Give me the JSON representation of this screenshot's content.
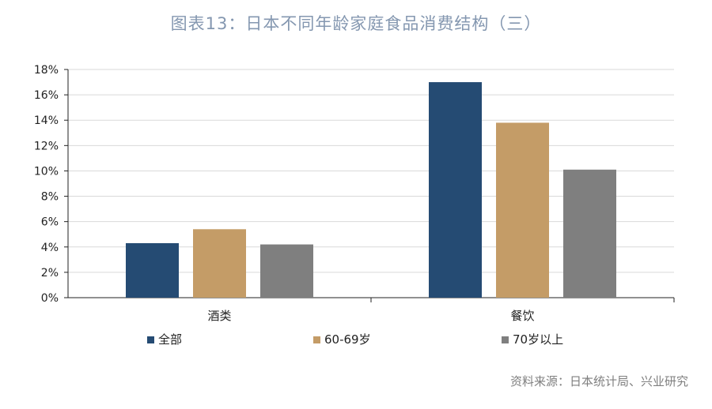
{
  "title": "图表13：日本不同年龄家庭食品消费结构（三）",
  "source": "资料来源：日本统计局、兴业研究",
  "chart_data": {
    "type": "bar",
    "categories": [
      "酒类",
      "餐饮"
    ],
    "series": [
      {
        "name": "全部",
        "values": [
          4.3,
          17.0
        ],
        "color": "#254b73"
      },
      {
        "name": "60-69岁",
        "values": [
          5.4,
          13.8
        ],
        "color": "#c49c67"
      },
      {
        "name": "70岁以上",
        "values": [
          4.2,
          10.1
        ],
        "color": "#7f7f7f"
      }
    ],
    "ylim": [
      0,
      18
    ],
    "yticks": [
      "0%",
      "2%",
      "4%",
      "6%",
      "8%",
      "10%",
      "12%",
      "14%",
      "16%",
      "18%"
    ],
    "grid": true,
    "legend_position": "bottom"
  }
}
